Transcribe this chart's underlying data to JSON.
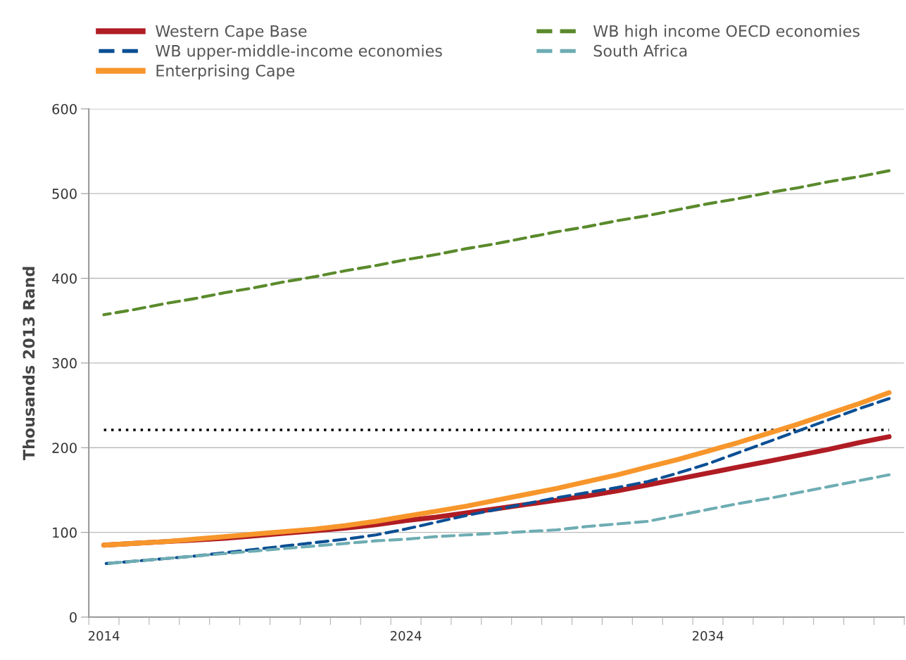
{
  "chart_data": {
    "type": "line",
    "ylabel": "Thousands 2013 Rand",
    "categories": [
      "2014",
      null,
      null,
      null,
      null,
      null,
      null,
      null,
      null,
      null,
      "2024",
      null,
      null,
      null,
      null,
      null,
      null,
      null,
      null,
      null,
      "2034",
      null,
      null,
      null,
      null,
      null,
      null
    ],
    "ylim": [
      0,
      600
    ],
    "yticks": [
      0,
      100,
      200,
      300,
      400,
      500,
      600
    ],
    "grid": "y",
    "legend": "top",
    "series": [
      {
        "name": "Western Cape Base",
        "color": "#b01c23",
        "line_style": "solid",
        "values": [
          85,
          87,
          89,
          91,
          93,
          96,
          99,
          102,
          105,
          109,
          114,
          118,
          123,
          128,
          133,
          138,
          143,
          149,
          156,
          163,
          170,
          177,
          184,
          191,
          198,
          206,
          213
        ]
      },
      {
        "name": "WB upper-middle-income economies",
        "color": "#0b4f94",
        "line_style": "dashed",
        "values": [
          63,
          66,
          69,
          72,
          76,
          80,
          84,
          88,
          92,
          97,
          104,
          112,
          120,
          127,
          134,
          141,
          147,
          153,
          160,
          170,
          181,
          194,
          207,
          220,
          233,
          246,
          258
        ]
      },
      {
        "name": "Enterprising Cape",
        "color": "#f7962b",
        "line_style": "solid",
        "values": [
          85,
          87,
          89,
          92,
          95,
          98,
          101,
          104,
          108,
          113,
          119,
          125,
          131,
          138,
          145,
          152,
          160,
          168,
          177,
          186,
          196,
          206,
          217,
          228,
          240,
          252,
          265
        ]
      },
      {
        "name": "WB high income OECD economies",
        "color": "#5a8a2c",
        "line_style": "dashed",
        "values": [
          357,
          363,
          370,
          376,
          383,
          389,
          396,
          402,
          409,
          415,
          422,
          428,
          435,
          441,
          448,
          455,
          461,
          468,
          474,
          481,
          488,
          494,
          501,
          507,
          514,
          520,
          527
        ]
      },
      {
        "name": "South Africa",
        "color": "#6eadb3",
        "line_style": "dashed",
        "values": [
          63,
          66,
          69,
          72,
          75,
          78,
          81,
          84,
          87,
          90,
          92,
          95,
          97,
          99,
          101,
          103,
          107,
          110,
          113,
          120,
          127,
          134,
          140,
          147,
          154,
          161,
          168
        ]
      }
    ],
    "ref_lines": [
      {
        "axis": "y",
        "value": 221,
        "color": "#000000",
        "line_style": "dotted"
      }
    ]
  }
}
